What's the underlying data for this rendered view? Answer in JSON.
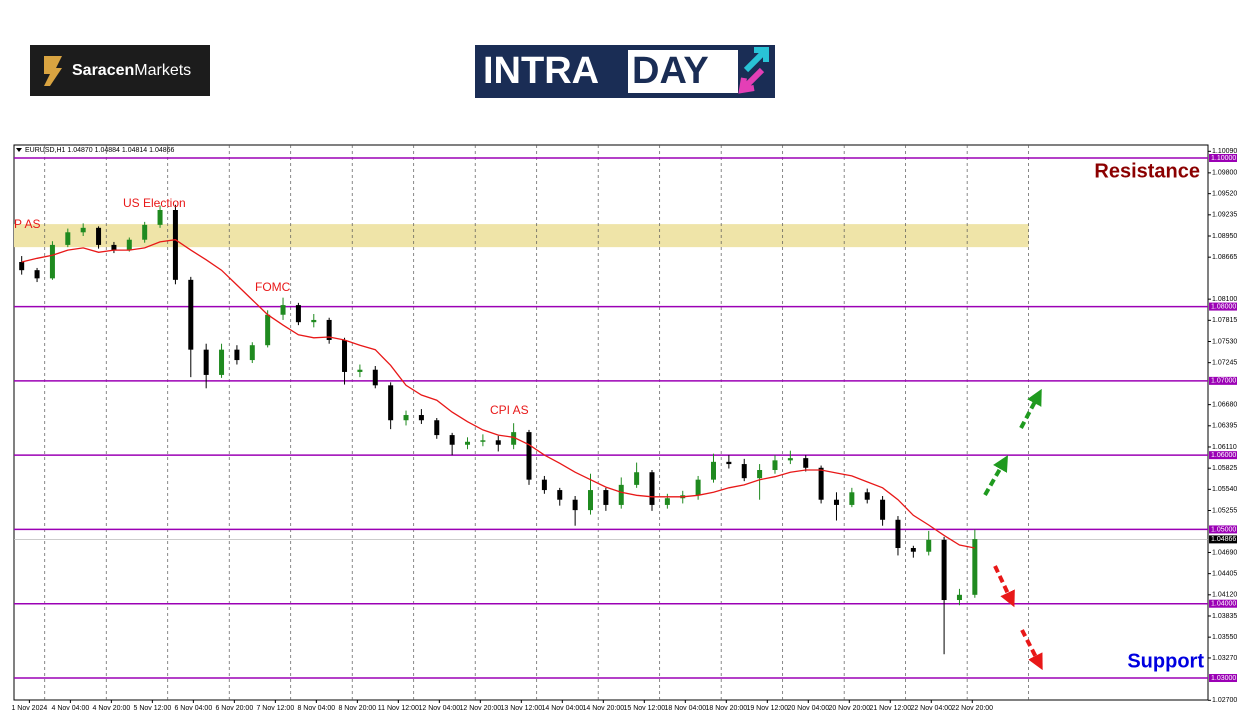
{
  "brand": {
    "bold": "Saracen",
    "rest": "Markets"
  },
  "banner": {
    "part1": "INTRA",
    "part2": "DAY"
  },
  "chart_data": {
    "type": "candlestick",
    "symbol_info": "EURUSD,H1  1.04870 1.04884 1.04814 1.04866",
    "x": [
      3,
      9,
      15,
      21,
      27,
      33,
      39,
      45,
      51,
      57,
      63,
      69,
      75,
      81,
      87,
      93,
      99,
      105,
      111,
      117,
      123,
      129,
      135,
      141,
      147,
      153,
      159,
      165,
      171,
      177,
      183,
      189,
      195,
      201,
      207,
      213,
      219,
      225,
      231,
      237,
      243,
      249,
      255,
      261,
      267,
      273,
      279,
      285,
      291,
      297,
      303,
      309,
      315,
      321,
      327,
      333,
      339,
      345,
      351,
      357,
      363,
      369,
      375
    ],
    "open": [
      1.086,
      1.0849,
      1.0838,
      1.0883,
      1.09,
      1.0906,
      1.0883,
      1.0876,
      1.089,
      1.091,
      1.093,
      1.0836,
      1.0742,
      1.0708,
      1.0742,
      1.0728,
      1.0748,
      1.0789,
      1.0802,
      1.0779,
      1.0782,
      1.0755,
      1.0712,
      1.0715,
      1.0694,
      1.0647,
      1.0654,
      1.0647,
      1.0627,
      1.0614,
      1.0618,
      1.062,
      1.0614,
      1.0631,
      1.0567,
      1.0553,
      1.054,
      1.0526,
      1.0553,
      1.0533,
      1.056,
      1.0577,
      1.0533,
      1.0542,
      1.0546,
      1.0567,
      1.0591,
      1.0588,
      1.0569,
      1.058,
      1.0593,
      1.0596,
      1.0583,
      1.054,
      1.0533,
      1.055,
      1.054,
      1.0513,
      1.0475,
      1.047,
      1.0486,
      1.0405,
      1.0412
    ],
    "high": [
      1.0868,
      1.0852,
      1.0888,
      1.0905,
      1.0912,
      1.0908,
      1.0887,
      1.0893,
      1.0914,
      1.0936,
      1.0937,
      1.084,
      1.075,
      1.075,
      1.0748,
      1.0752,
      1.0795,
      1.0812,
      1.0805,
      1.079,
      1.0785,
      1.0758,
      1.0722,
      1.072,
      1.0698,
      1.066,
      1.0662,
      1.065,
      1.063,
      1.0624,
      1.0628,
      1.0626,
      1.0643,
      1.0634,
      1.0572,
      1.0556,
      1.0545,
      1.0575,
      1.0556,
      1.057,
      1.059,
      1.058,
      1.0548,
      1.0552,
      1.0572,
      1.0602,
      1.06,
      1.0595,
      1.0588,
      1.06,
      1.0606,
      1.06,
      1.0586,
      1.055,
      1.0556,
      1.0555,
      1.0545,
      1.0518,
      1.0478,
      1.0498,
      1.049,
      1.042,
      1.05
    ],
    "low": [
      1.0843,
      1.0833,
      1.0836,
      1.088,
      1.0895,
      1.0878,
      1.0872,
      1.0874,
      1.0886,
      1.0906,
      1.083,
      1.0705,
      1.069,
      1.0704,
      1.0722,
      1.0724,
      1.0745,
      1.0782,
      1.0775,
      1.0772,
      1.075,
      1.0695,
      1.0705,
      1.069,
      1.0635,
      1.064,
      1.0642,
      1.0622,
      1.06,
      1.0608,
      1.0612,
      1.0605,
      1.0608,
      1.056,
      1.0548,
      1.0532,
      1.0505,
      1.052,
      1.0525,
      1.0528,
      1.0556,
      1.0525,
      1.0528,
      1.0535,
      1.054,
      1.0563,
      1.0582,
      1.0565,
      1.054,
      1.0575,
      1.0588,
      1.0578,
      1.0535,
      1.0512,
      1.053,
      1.0535,
      1.0505,
      1.0465,
      1.0462,
      1.0465,
      1.0332,
      1.0398,
      1.0408
    ],
    "close": [
      1.0849,
      1.0838,
      1.0883,
      1.09,
      1.0906,
      1.0883,
      1.0876,
      1.089,
      1.091,
      1.093,
      1.0836,
      1.0742,
      1.0708,
      1.0742,
      1.0728,
      1.0748,
      1.0789,
      1.0802,
      1.0779,
      1.0782,
      1.0755,
      1.0712,
      1.0715,
      1.0694,
      1.0647,
      1.0654,
      1.0647,
      1.0627,
      1.0614,
      1.0618,
      1.062,
      1.0614,
      1.0631,
      1.0567,
      1.0553,
      1.054,
      1.0526,
      1.0553,
      1.0533,
      1.056,
      1.0577,
      1.0533,
      1.0542,
      1.0546,
      1.0567,
      1.0591,
      1.0588,
      1.0569,
      1.058,
      1.0593,
      1.0596,
      1.0583,
      1.054,
      1.0533,
      1.055,
      1.054,
      1.0513,
      1.0475,
      1.047,
      1.0486,
      1.0405,
      1.0412,
      1.0487
    ],
    "up_color": "#1f8a1f",
    "down_color": "#000000",
    "ma": {
      "color": "#e81818",
      "values": [
        1.086,
        1.0865,
        1.0869,
        1.0876,
        1.0879,
        1.0873,
        1.0876,
        1.0876,
        1.0879,
        1.0887,
        1.089,
        1.0876,
        1.0863,
        1.0849,
        1.0829,
        1.0809,
        1.0789,
        1.0775,
        1.0762,
        1.0758,
        1.0759,
        1.0755,
        1.0748,
        1.0742,
        1.0721,
        1.0694,
        1.0681,
        1.0674,
        1.0658,
        1.0645,
        1.0634,
        1.0627,
        1.0624,
        1.0614,
        1.06,
        1.0589,
        1.0577,
        1.0567,
        1.0557,
        1.055,
        1.0546,
        1.0544,
        1.0544,
        1.0544,
        1.0546,
        1.055,
        1.0556,
        1.056,
        1.0567,
        1.0571,
        1.0577,
        1.058,
        1.058,
        1.0576,
        1.0572,
        1.0564,
        1.0556,
        1.054,
        1.0519,
        1.0506,
        1.0492,
        1.0479,
        1.0475
      ]
    },
    "xlim": [
      0,
      466
    ],
    "ylim": [
      1.02704,
      1.10175
    ],
    "xticks": [
      {
        "value": 6,
        "label": "1 Nov 2024"
      },
      {
        "value": 22,
        "label": "4 Nov 04:00"
      },
      {
        "value": 38,
        "label": "4 Nov 20:00"
      },
      {
        "value": 54,
        "label": "5 Nov 12:00"
      },
      {
        "value": 70,
        "label": "6 Nov 04:00"
      },
      {
        "value": 86,
        "label": "6 Nov 20:00"
      },
      {
        "value": 102,
        "label": "7 Nov 12:00"
      },
      {
        "value": 118,
        "label": "8 Nov 04:00"
      },
      {
        "value": 134,
        "label": "8 Nov 20:00"
      },
      {
        "value": 150,
        "label": "11 Nov 12:00"
      },
      {
        "value": 166,
        "label": "12 Nov 04:00"
      },
      {
        "value": 182,
        "label": "12 Nov 20:00"
      },
      {
        "value": 198,
        "label": "13 Nov 12:00"
      },
      {
        "value": 214,
        "label": "14 Nov 04:00"
      },
      {
        "value": 230,
        "label": "14 Nov 20:00"
      },
      {
        "value": 246,
        "label": "15 Nov 12:00"
      },
      {
        "value": 262,
        "label": "18 Nov 04:00"
      },
      {
        "value": 278,
        "label": "18 Nov 20:00"
      },
      {
        "value": 294,
        "label": "19 Nov 12:00"
      },
      {
        "value": 310,
        "label": "20 Nov 04:00"
      },
      {
        "value": 326,
        "label": "20 Nov 20:00"
      },
      {
        "value": 342,
        "label": "21 Nov 12:00"
      },
      {
        "value": 358,
        "label": "22 Nov 04:00"
      },
      {
        "value": 374,
        "label": "22 Nov 20:00"
      }
    ],
    "separators": [
      12,
      36,
      60,
      84,
      108,
      132,
      156,
      180,
      204,
      228,
      252,
      276,
      300,
      324,
      348,
      372,
      396
    ],
    "yticks": [
      {
        "value": 1.1009,
        "label": "1.10090"
      },
      {
        "value": 1.098,
        "label": "1.09800"
      },
      {
        "value": 1.0952,
        "label": "1.09520"
      },
      {
        "value": 1.09235,
        "label": "1.09235"
      },
      {
        "value": 1.0895,
        "label": "1.08950"
      },
      {
        "value": 1.08665,
        "label": "1.08665"
      },
      {
        "value": 1.081,
        "label": "1.08100"
      },
      {
        "value": 1.07815,
        "label": "1.07815"
      },
      {
        "value": 1.0753,
        "label": "1.07530"
      },
      {
        "value": 1.07245,
        "label": "1.07245"
      },
      {
        "value": 1.0668,
        "label": "1.06680"
      },
      {
        "value": 1.06395,
        "label": "1.06395"
      },
      {
        "value": 1.0611,
        "label": "1.06110"
      },
      {
        "value": 1.05825,
        "label": "1.05825"
      },
      {
        "value": 1.0554,
        "label": "1.05540"
      },
      {
        "value": 1.05255,
        "label": "1.05255"
      },
      {
        "value": 1.0469,
        "label": "1.04690"
      },
      {
        "value": 1.04405,
        "label": "1.04405"
      },
      {
        "value": 1.0412,
        "label": "1.04120"
      },
      {
        "value": 1.03835,
        "label": "1.03835"
      },
      {
        "value": 1.0355,
        "label": "1.03550"
      },
      {
        "value": 1.0327,
        "label": "1.03270"
      },
      {
        "value": 1.027,
        "label": "1.02700"
      }
    ],
    "levels": {
      "color": "#9b00b5",
      "values": [
        {
          "value": 1.1,
          "label": "1.10000"
        },
        {
          "value": 1.08,
          "label": "1.08000"
        },
        {
          "value": 1.07,
          "label": "1.07000"
        },
        {
          "value": 1.06,
          "label": "1.06000"
        },
        {
          "value": 1.05,
          "label": "1.05000"
        },
        {
          "value": 1.04,
          "label": "1.04000"
        },
        {
          "value": 1.03,
          "label": "1.03000"
        }
      ]
    },
    "current": {
      "value": 1.04866,
      "label": "1.04866"
    },
    "zone": {
      "low": 1.088,
      "high": 1.0911,
      "color": "#efe4a8"
    },
    "annotations": [
      "P AS",
      "US Election",
      "FOMC",
      "CPI AS"
    ],
    "resistance": "Resistance",
    "support": "Support"
  }
}
